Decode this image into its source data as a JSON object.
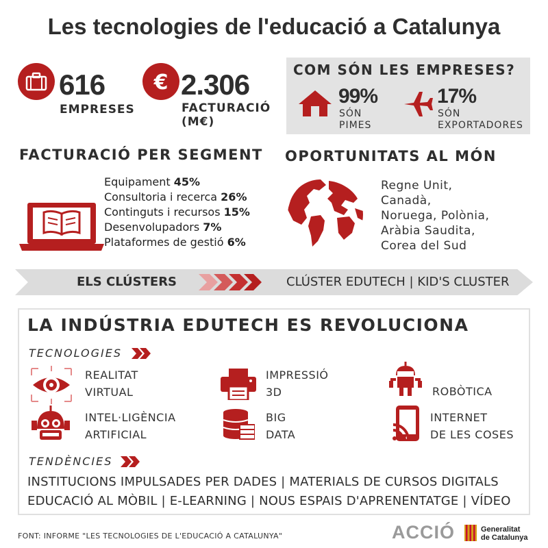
{
  "title": "Les tecnologies de l'educació a Catalunya",
  "stats": {
    "companies": {
      "value": "616",
      "label": "EMPRESES",
      "icon": "briefcase-icon"
    },
    "revenue": {
      "value": "2.306",
      "label_line1": "FACTURACIÓ",
      "label_line2": "(M€)",
      "icon": "euro-icon",
      "symbol": "€"
    }
  },
  "company_profile": {
    "heading": "COM SÓN LES EMPRESES?",
    "sme": {
      "value": "99%",
      "label_line1": "SÓN",
      "label_line2": "PIMES",
      "icon": "house-icon"
    },
    "exporters": {
      "value": "17%",
      "label_line1": "SÓN",
      "label_line2": "EXPORTADORES",
      "icon": "airplane-icon"
    }
  },
  "segments": {
    "heading": "FACTURACIÓ PER SEGMENT",
    "icon": "laptop-book-icon",
    "items": [
      {
        "label": "Equipament",
        "value": "45%"
      },
      {
        "label": "Consultoria i recerca",
        "value": "26%"
      },
      {
        "label": "Continguts i recursos",
        "value": "15%"
      },
      {
        "label": "Desenvolupadors",
        "value": "7%"
      },
      {
        "label": "Plataformes de gestió",
        "value": "6%"
      }
    ]
  },
  "opportunities": {
    "heading": "OPORTUNITATS AL MÓN",
    "icon": "globe-icon",
    "lines": [
      "Regne Unit,",
      "Canadà,",
      "Noruega, Polònia,",
      "Aràbia Saudita,",
      "Corea del Sud"
    ]
  },
  "clusters": {
    "label": "ELS CLÚSTERS",
    "list": "CLÚSTER EDUTECH |  KID'S CLUSTER"
  },
  "revolution": {
    "heading": "LA INDÚSTRIA EDUTECH ES REVOLUCIONA",
    "technologies_label": "TECNOLOGIES",
    "technologies": [
      {
        "line1": "REALITAT",
        "line2": "VIRTUAL",
        "icon": "vr-eye-icon"
      },
      {
        "line1": "IMPRESSIÓ",
        "line2": "3D",
        "icon": "printer-icon"
      },
      {
        "line1": "ROBÒTICA",
        "line2": "",
        "icon": "robot-icon"
      },
      {
        "line1": "INTEL·LIGÈNCIA",
        "line2": "ARTIFICIAL",
        "icon": "ai-robot-head-icon"
      },
      {
        "line1": "BIG",
        "line2": "DATA",
        "icon": "database-icon"
      },
      {
        "line1": "INTERNET",
        "line2": "DE LES COSES",
        "icon": "iot-phone-icon"
      }
    ],
    "trends_label": "TENDÈNCIES",
    "trends_line1": "INSTITUCIONS IMPULSADES PER DADES | MATERIALS DE CURSOS DIGITALS",
    "trends_line2": "EDUCACIÓ AL MÒBIL | E-LEARNING | NOUS ESPAIS D'APRENENTATGE | VÍDEO"
  },
  "footer": {
    "source": "FONT: INFORME \"LES TECNOLOGIES DE L'EDUCACIÓ A CATALUNYA\"",
    "accio_logo": "ACCIÓ",
    "gencat_line1": "Generalitat",
    "gencat_line2": "de Catalunya"
  },
  "colors": {
    "accent": "#b51f1f",
    "text": "#2e2e2e",
    "panel": "#e3e3e3"
  }
}
